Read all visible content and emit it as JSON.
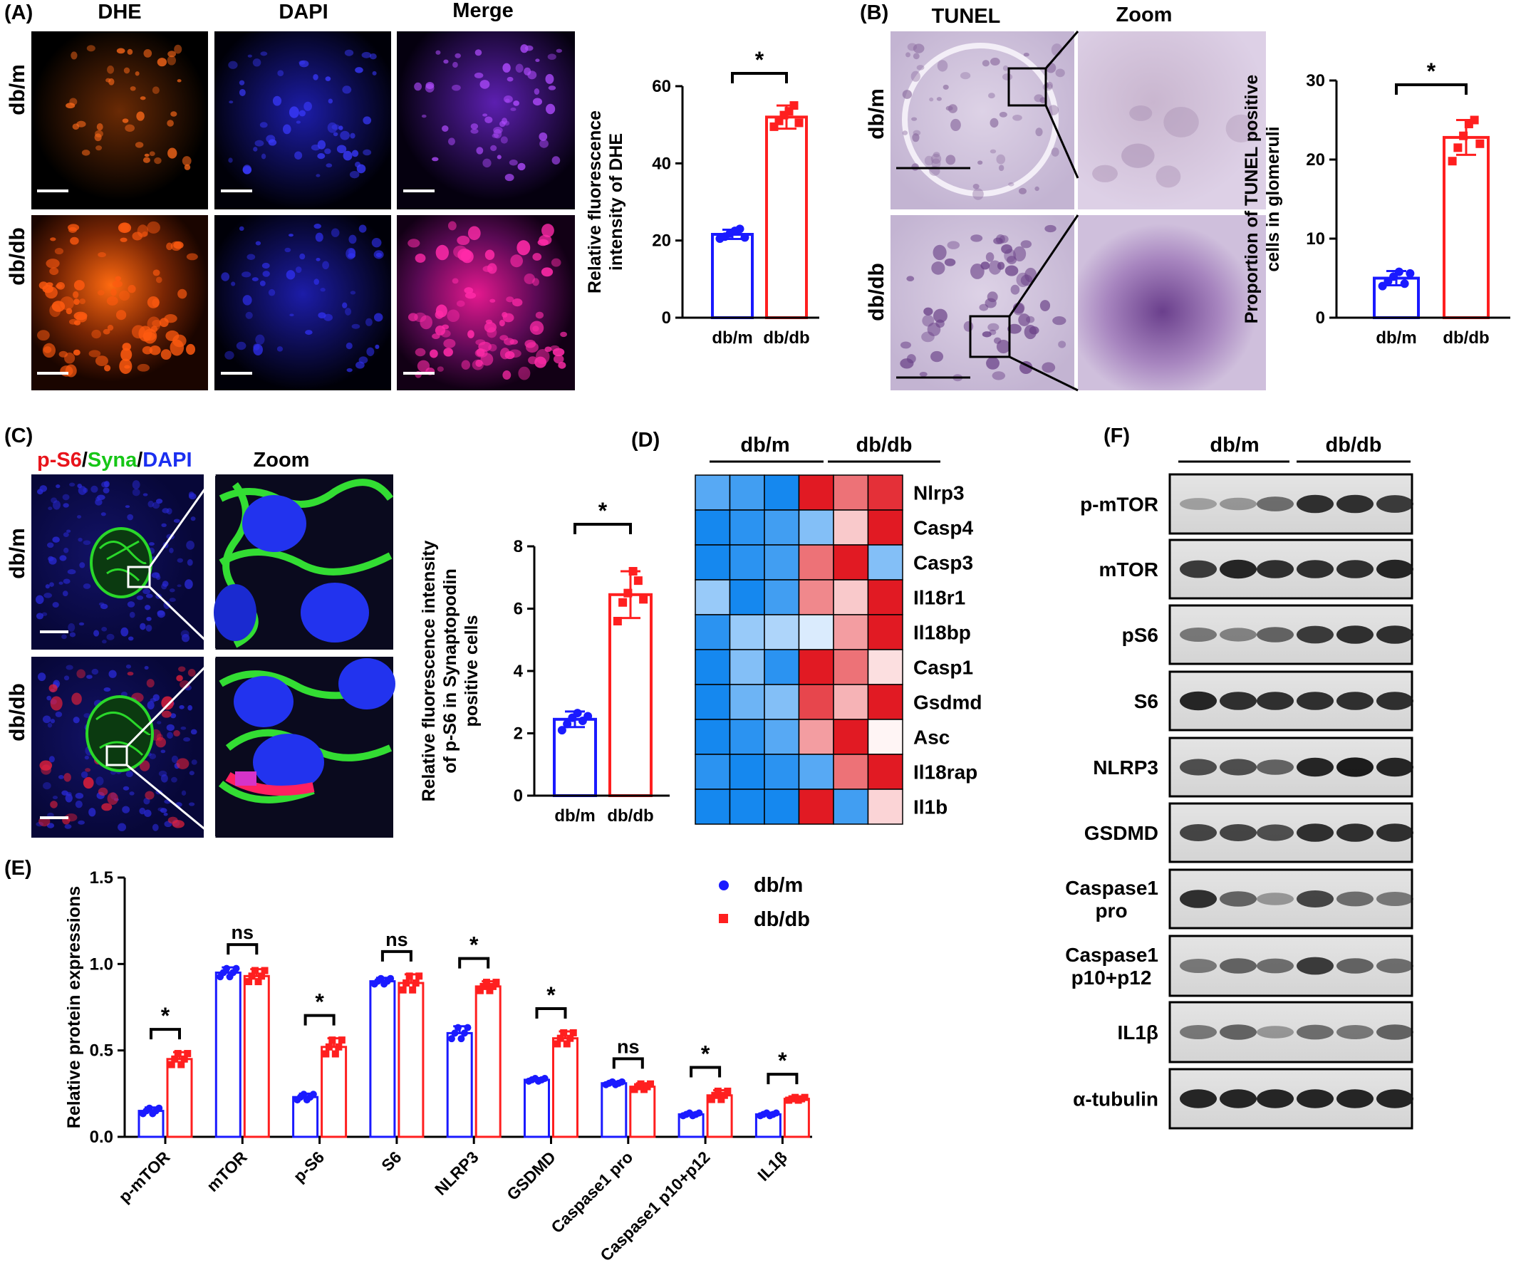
{
  "panelA": {
    "label": "(A)",
    "columns": [
      "DHE",
      "DAPI",
      "Merge"
    ],
    "rows": [
      "db/m",
      "db/db"
    ]
  },
  "panelB": {
    "label": "(B)",
    "columns": [
      "TUNEL",
      "Zoom"
    ],
    "rows": [
      "db/m",
      "db/db"
    ]
  },
  "panelC": {
    "label": "(C)",
    "stain_parts": [
      {
        "text": "p-S6",
        "color": "#e8141b"
      },
      {
        "text": "/",
        "color": "#000000"
      },
      {
        "text": "Syna",
        "color": "#17c617"
      },
      {
        "text": "/",
        "color": "#000000"
      },
      {
        "text": "DAPI",
        "color": "#1b2ff0"
      }
    ],
    "zoom": "Zoom",
    "rows": [
      "db/m",
      "db/db"
    ]
  },
  "panelD": {
    "label": "(D)",
    "groups": [
      "db/m",
      "db/db"
    ]
  },
  "panelE": {
    "label": "(E)"
  },
  "panelF": {
    "label": "(F)",
    "groups": [
      "db/m",
      "db/db"
    ],
    "bands": [
      {
        "lines": [
          "p-mTOR"
        ]
      },
      {
        "lines": [
          "mTOR"
        ]
      },
      {
        "lines": [
          "pS6"
        ]
      },
      {
        "lines": [
          "S6"
        ]
      },
      {
        "lines": [
          "NLRP3"
        ]
      },
      {
        "lines": [
          "GSDMD"
        ]
      },
      {
        "lines": [
          "Caspase1",
          "pro"
        ]
      },
      {
        "lines": [
          "Caspase1",
          "p10+p12"
        ]
      },
      {
        "lines": [
          "IL1β"
        ]
      },
      {
        "lines": [
          "α-tubulin"
        ]
      }
    ]
  },
  "colors": {
    "dbm": "#1a1aff",
    "dbdb": "#ff1f1f"
  },
  "chart_data": [
    {
      "id": "A",
      "type": "bar",
      "categories": [
        "db/m",
        "db/db"
      ],
      "values": [
        21.6,
        52.0
      ],
      "errors": [
        1.2,
        3.0
      ],
      "points": [
        [
          20.5,
          21.0,
          21.8,
          22.5,
          23.0,
          20.8
        ],
        [
          49.5,
          51.0,
          52.5,
          53.5,
          55.0,
          50.5
        ]
      ],
      "ylabel": [
        "Relative fluorescence",
        "intensity of DHE"
      ],
      "ylim": [
        0,
        60
      ],
      "yticks": [
        "0",
        "20",
        "40",
        "60"
      ],
      "significance": "*"
    },
    {
      "id": "B",
      "type": "bar",
      "categories": [
        "db/m",
        "db/db"
      ],
      "values": [
        5.0,
        22.8
      ],
      "errors": [
        0.9,
        2.2
      ],
      "points": [
        [
          4.0,
          4.6,
          5.2,
          5.8,
          4.3,
          5.6
        ],
        [
          19.8,
          21.5,
          23.0,
          24.5,
          25.0,
          22.0
        ]
      ],
      "ylabel": [
        "Proportion of TUNEL positive",
        "cells in glomeruli"
      ],
      "ylim": [
        0,
        30
      ],
      "yticks": [
        "0",
        "10",
        "20",
        "30"
      ],
      "significance": "*"
    },
    {
      "id": "C",
      "type": "bar",
      "categories": [
        "db/m",
        "db/db"
      ],
      "values": [
        2.45,
        6.45
      ],
      "errors": [
        0.25,
        0.75
      ],
      "points": [
        [
          2.1,
          2.3,
          2.5,
          2.65,
          2.4,
          2.55
        ],
        [
          5.6,
          6.2,
          6.5,
          7.2,
          6.9,
          6.3
        ]
      ],
      "ylabel": [
        "Relative fluorescence intensity",
        "of p-S6 in Synaptopodin",
        "positive cells"
      ],
      "ylim": [
        0,
        8
      ],
      "yticks": [
        "0",
        "2",
        "4",
        "6",
        "8"
      ],
      "significance": "*"
    },
    {
      "id": "D",
      "type": "heatmap",
      "rows": [
        "Nlrp3",
        "Casp4",
        "Casp3",
        "Il18r1",
        "Il18bp",
        "Casp1",
        "Gsdmd",
        "Asc",
        "Il18rap",
        "Il1b"
      ],
      "columns": [
        "db/m",
        "db/m",
        "db/m",
        "db/db",
        "db/db",
        "db/db"
      ],
      "values": [
        [
          -0.7,
          -0.8,
          -1.0,
          1.0,
          0.6,
          0.9
        ],
        [
          -1.0,
          -0.9,
          -0.8,
          -0.5,
          0.2,
          1.0
        ],
        [
          -1.0,
          -0.9,
          -0.8,
          0.6,
          1.0,
          -0.5
        ],
        [
          -0.4,
          -1.0,
          -0.8,
          0.5,
          0.2,
          1.0
        ],
        [
          -0.9,
          -0.4,
          -0.3,
          -0.1,
          0.4,
          1.0
        ],
        [
          -1.0,
          -0.5,
          -0.9,
          1.0,
          0.6,
          0.1
        ],
        [
          -1.0,
          -0.6,
          -0.5,
          0.8,
          0.3,
          1.0
        ],
        [
          -1.0,
          -0.9,
          -0.7,
          0.4,
          1.0,
          0.0
        ],
        [
          -0.9,
          -1.0,
          -0.9,
          -0.7,
          0.6,
          1.0
        ],
        [
          -1.0,
          -1.0,
          -1.0,
          1.0,
          -0.8,
          0.15
        ]
      ]
    },
    {
      "id": "E",
      "type": "bar",
      "categories": [
        "p-mTOR",
        "mTOR",
        "p-S6",
        "S6",
        "NLRP3",
        "GSDMD",
        "Caspase1 pro",
        "Caspase1 p10+p12",
        "IL1β"
      ],
      "series": [
        {
          "name": "db/m",
          "values": [
            0.15,
            0.95,
            0.23,
            0.9,
            0.6,
            0.33,
            0.31,
            0.13,
            0.13
          ],
          "errors": [
            0.02,
            0.03,
            0.02,
            0.02,
            0.04,
            0.01,
            0.01,
            0.01,
            0.01
          ]
        },
        {
          "name": "db/db",
          "values": [
            0.45,
            0.93,
            0.52,
            0.89,
            0.87,
            0.57,
            0.29,
            0.24,
            0.22
          ],
          "errors": [
            0.04,
            0.04,
            0.05,
            0.05,
            0.03,
            0.04,
            0.02,
            0.03,
            0.01
          ]
        }
      ],
      "significance": [
        "*",
        "ns",
        "*",
        "ns",
        "*",
        "*",
        "ns",
        "*",
        "*"
      ],
      "ylabel": "Relative protein expressions",
      "ylim": [
        0,
        1.5
      ],
      "yticks": [
        "0.0",
        "0.5",
        "1.0",
        "1.5"
      ],
      "legend": "top-right"
    }
  ]
}
